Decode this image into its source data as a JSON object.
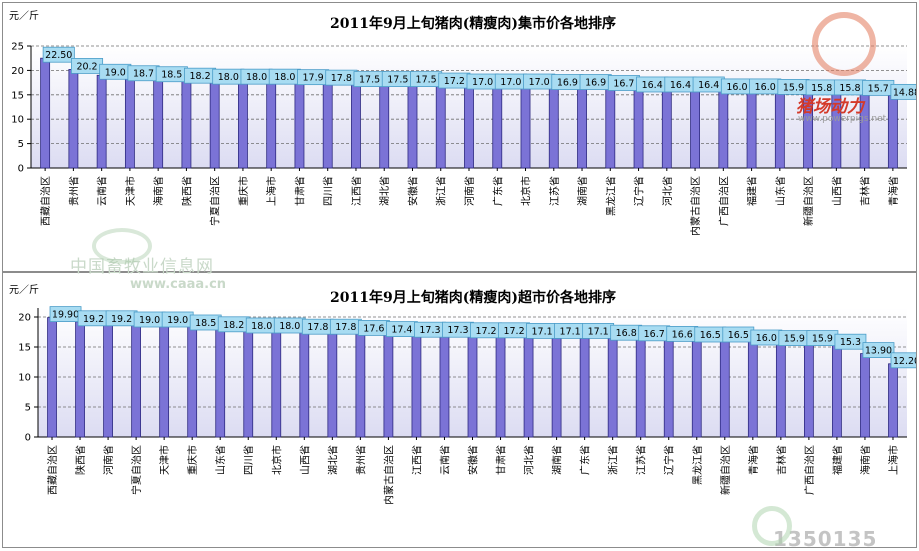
{
  "chart_data": [
    {
      "type": "bar",
      "title": "2011年9月上旬猪肉(精瘦肉)集市价各地排序",
      "unit": "元／斤",
      "ylim": [
        0,
        25
      ],
      "yticks": [
        "0",
        "5",
        "10",
        "15",
        "20",
        "25"
      ],
      "grid": "horizontal dashed",
      "bar_color": "#7b73d6",
      "label_color": "#a8dcf2",
      "categories": [
        "西藏自治区",
        "贵州省",
        "云南省",
        "天津市",
        "海南省",
        "陕西省",
        "宁夏自治区",
        "重庆市",
        "上海市",
        "甘肃省",
        "四川省",
        "江西省",
        "湖北省",
        "安徽省",
        "浙江省",
        "河南省",
        "广东省",
        "北京市",
        "江苏省",
        "湖南省",
        "黑龙江省",
        "辽宁省",
        "河北省",
        "内蒙古自治区",
        "广西自治区",
        "福建省",
        "山东省",
        "新疆自治区",
        "山西省",
        "吉林省",
        "青海省"
      ],
      "values": [
        22.5,
        20.2,
        19.0,
        18.7,
        18.5,
        18.2,
        18.0,
        18.0,
        18.0,
        17.9,
        17.8,
        17.5,
        17.5,
        17.5,
        17.2,
        17.0,
        17.0,
        17.0,
        16.9,
        16.9,
        16.7,
        16.4,
        16.4,
        16.4,
        16.0,
        16.0,
        15.9,
        15.8,
        15.8,
        15.7,
        14.88
      ],
      "data_labels": [
        "22.50",
        "20.2",
        "19.0",
        "18.7",
        "18.5",
        "18.2",
        "18.0",
        "18.0",
        "18.0",
        "17.9",
        "17.8",
        "17.5",
        "17.5",
        "17.5",
        "17.2",
        "17.0",
        "17.0",
        "17.0",
        "16.9",
        "16.9",
        "16.7",
        "16.4",
        "16.4",
        "16.4",
        "16.0",
        "16.0",
        "15.9",
        "15.8",
        "15.8",
        "15.7",
        "14.88"
      ]
    },
    {
      "type": "bar",
      "title": "2011年9月上旬猪肉(精瘦肉)超市价各地排序",
      "unit": "元／斤",
      "ylim": [
        0,
        21.5
      ],
      "yticks": [
        "0",
        "5",
        "10",
        "15",
        "20"
      ],
      "grid": "horizontal dashed",
      "bar_color": "#7b73d6",
      "label_color": "#a8dcf2",
      "categories": [
        "西藏自治区",
        "陕西省",
        "河南省",
        "宁夏自治区",
        "天津市",
        "重庆市",
        "山东省",
        "四川省",
        "北京市",
        "山西省",
        "湖北省",
        "贵州省",
        "内蒙古自治区",
        "江西省",
        "云南省",
        "安徽省",
        "甘肃省",
        "河北省",
        "湖南省",
        "广东省",
        "浙江省",
        "江苏省",
        "辽宁省",
        "黑龙江省",
        "新疆自治区",
        "青海省",
        "吉林省",
        "广西自治区",
        "福建省",
        "海南省",
        "上海市"
      ],
      "values": [
        19.9,
        19.2,
        19.2,
        19.0,
        19.0,
        18.5,
        18.2,
        18.0,
        18.0,
        17.8,
        17.8,
        17.6,
        17.4,
        17.3,
        17.3,
        17.2,
        17.2,
        17.1,
        17.1,
        17.1,
        16.8,
        16.7,
        16.6,
        16.5,
        16.5,
        16.0,
        15.9,
        15.9,
        15.3,
        13.9,
        12.2
      ],
      "data_labels": [
        "19.90",
        "19.2",
        "19.2",
        "19.0",
        "19.0",
        "18.5",
        "18.2",
        "18.0",
        "18.0",
        "17.8",
        "17.8",
        "17.6",
        "17.4",
        "17.3",
        "17.3",
        "17.2",
        "17.2",
        "17.1",
        "17.1",
        "17.1",
        "16.8",
        "16.7",
        "16.6",
        "16.5",
        "16.5",
        "16.0",
        "15.9",
        "15.9",
        "15.3",
        "13.90",
        "12.20"
      ]
    }
  ],
  "watermarks": {
    "caaa_cn": "中国畜牧业信息网",
    "caaa_url": "www.caaa.cn",
    "powerpigs_cn": "猪场动力",
    "powerpigs_url": "www.powerpigs.net",
    "phone": "1350135"
  }
}
